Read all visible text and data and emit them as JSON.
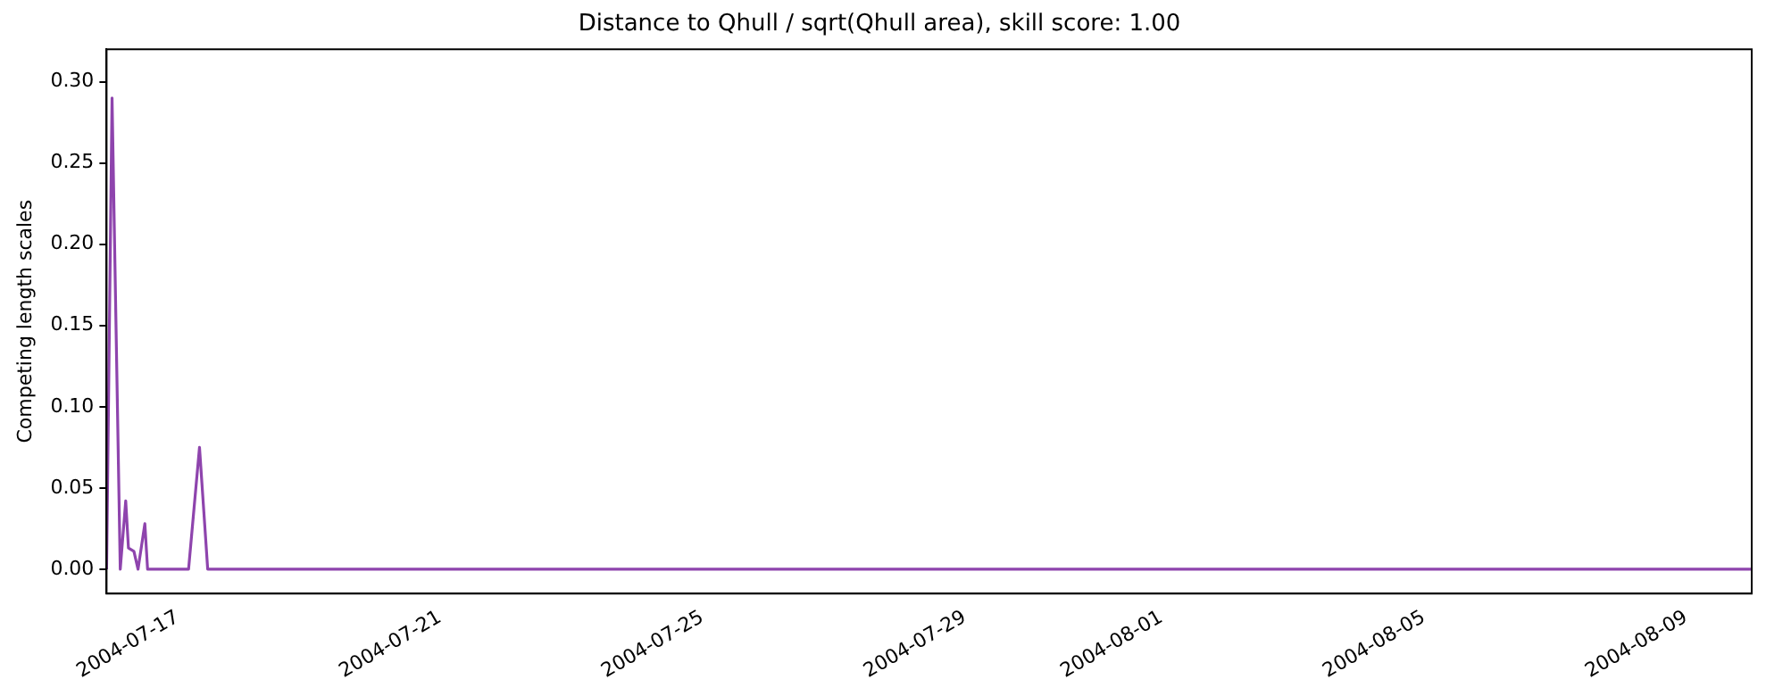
{
  "chart_data": {
    "type": "line",
    "title": "Distance to Qhull / sqrt(Qhull area), skill score: 1.00",
    "ylabel": "Competing length scales",
    "x": [
      "2004-07-15T22:00",
      "2004-07-16T00:00",
      "2004-07-16T03:00",
      "2004-07-16T05:00",
      "2004-07-16T06:00",
      "2004-07-16T08:00",
      "2004-07-16T09:30",
      "2004-07-16T12:00",
      "2004-07-16T13:00",
      "2004-07-17T04:00",
      "2004-07-17T08:00",
      "2004-07-17T11:00",
      "2004-08-10T00:00"
    ],
    "series": [
      {
        "color": "#8e44ad",
        "values": [
          0,
          0.29,
          0,
          0.042,
          0.013,
          0.011,
          0,
          0.028,
          0,
          0,
          0.075,
          0,
          0
        ]
      }
    ],
    "xlim": [
      "2004-07-15T22:00",
      "2004-08-10T00:00"
    ],
    "xticks": [
      "2004-07-17",
      "2004-07-21",
      "2004-07-25",
      "2004-07-29",
      "2004-08-01",
      "2004-08-05",
      "2004-08-09"
    ],
    "ylim": [
      -0.015,
      0.32
    ],
    "yticks": [
      {
        "value": 0,
        "label": "0.00"
      },
      {
        "value": 0.05,
        "label": "0.05"
      },
      {
        "value": 0.1,
        "label": "0.10"
      },
      {
        "value": 0.15,
        "label": "0.15"
      },
      {
        "value": 0.2,
        "label": "0.20"
      },
      {
        "value": 0.25,
        "label": "0.25"
      },
      {
        "value": 0.3,
        "label": "0.30"
      }
    ],
    "grid": false,
    "legend": false,
    "marker": "none",
    "line_style": "solid"
  }
}
